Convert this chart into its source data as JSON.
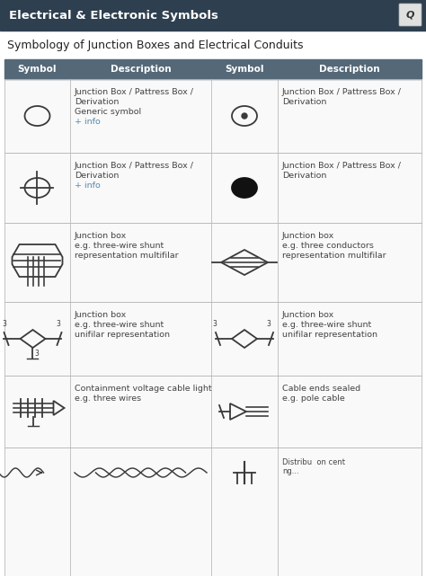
{
  "header_bg": "#2e3f4f",
  "header_text": "Electrical & Electronic Symbols",
  "header_text_color": "#ffffff",
  "subtitle": "Symbology of Junction Boxes and Electrical Conduits",
  "subtitle_color": "#222222",
  "table_header_bg": "#546878",
  "table_header_text_color": "#ffffff",
  "col_header": [
    "Symbol",
    "Description",
    "Symbol",
    "Description"
  ],
  "bg_color": "#f0f0f0",
  "cell_bg": "#f5f5f5",
  "grid_color": "#bbbbbb",
  "link_color": "#5588aa",
  "text_color": "#444444",
  "rows": [
    {
      "desc_left": "Junction Box / Pattress Box /\nDerivation\nGeneric symbol\n+ info",
      "desc_right": "Junction Box / Pattress Box /\nDerivation",
      "symbol_left": "circle_empty",
      "symbol_right": "circle_dot"
    },
    {
      "desc_left": "Junction Box / Pattress Box /\nDerivation\n+ info",
      "desc_right": "Junction Box / Pattress Box /\nDerivation",
      "symbol_left": "circle_crosshair",
      "symbol_right": "circle_filled"
    },
    {
      "desc_left": "Junction box\ne.g. three-wire shunt\nrepresentation multifilar",
      "desc_right": "Junction box\ne.g. three conductors\nrepresentation multifilar",
      "symbol_left": "octagon_multifilar",
      "symbol_right": "diamond_multifilar"
    },
    {
      "desc_left": "Junction box\ne.g. three-wire shunt\nunifilar representation",
      "desc_right": "Junction box\ne.g. three-wire shunt\nunifilar representation",
      "symbol_left": "diamond_unifilar_shunt",
      "symbol_right": "diamond_unifilar"
    },
    {
      "desc_left": "Containment voltage cable light\ne.g. three wires",
      "desc_right": "Cable ends sealed\ne.g. pole cable",
      "symbol_left": "cable_light",
      "symbol_right": "cable_sealed"
    }
  ],
  "last_row_visible": true
}
